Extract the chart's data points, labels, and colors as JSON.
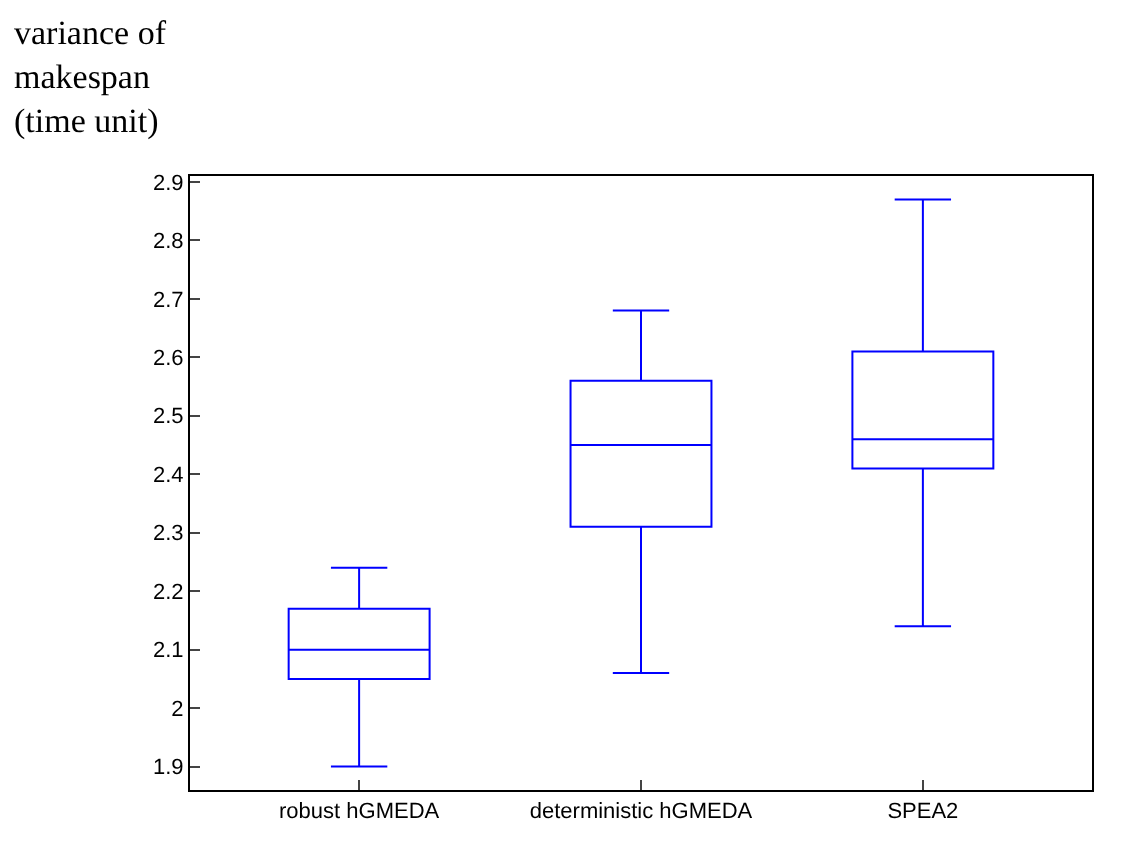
{
  "chart_data": {
    "type": "box",
    "ylabel": "variance of makespan (time unit)",
    "categories": [
      "robust hGMEDA",
      "deterministic hGMEDA",
      "SPEA2"
    ],
    "boxes": [
      {
        "low": 1.9,
        "q1": 2.05,
        "median": 2.1,
        "q3": 2.17,
        "high": 2.24
      },
      {
        "low": 2.06,
        "q1": 2.31,
        "median": 2.45,
        "q3": 2.56,
        "high": 2.68
      },
      {
        "low": 2.14,
        "q1": 2.41,
        "median": 2.46,
        "q3": 2.61,
        "high": 2.87
      }
    ],
    "color": "#0000ff",
    "ylim": [
      1.86,
      2.91
    ],
    "yticks": [
      1.9,
      2,
      2.1,
      2.2,
      2.3,
      2.4,
      2.5,
      2.6,
      2.7,
      2.8,
      2.9
    ]
  }
}
